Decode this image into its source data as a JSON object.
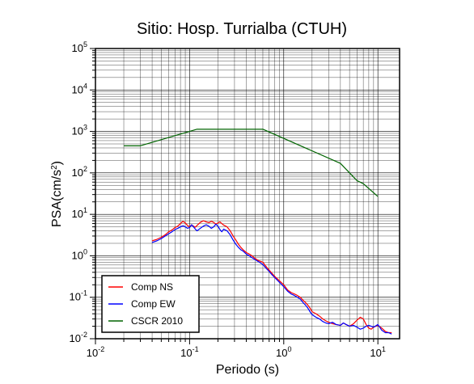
{
  "chart_data": {
    "type": "line",
    "title": "Sitio: Hosp. Turrialba (CTUH)",
    "xlabel": "Periodo (s)",
    "ylabel_base": "PSA(cm/s",
    "ylabel_exp": "2",
    "ylabel_close": ")",
    "x_scale": "log",
    "y_scale": "log",
    "xlim": [
      0.01,
      17
    ],
    "ylim": [
      0.01,
      100000
    ],
    "grid": true,
    "legend_position": "bottom-left",
    "x_ticks": [
      {
        "value": 0.01,
        "base": "10",
        "exp": "-2"
      },
      {
        "value": 0.1,
        "base": "10",
        "exp": "-1"
      },
      {
        "value": 1,
        "base": "10",
        "exp": "0"
      },
      {
        "value": 10,
        "base": "10",
        "exp": "1"
      }
    ],
    "y_ticks": [
      {
        "value": 0.01,
        "base": "10",
        "exp": "-2"
      },
      {
        "value": 0.1,
        "base": "10",
        "exp": "-1"
      },
      {
        "value": 1,
        "base": "10",
        "exp": "0"
      },
      {
        "value": 10,
        "base": "10",
        "exp": "1"
      },
      {
        "value": 100,
        "base": "10",
        "exp": "2"
      },
      {
        "value": 1000,
        "base": "10",
        "exp": "3"
      },
      {
        "value": 10000,
        "base": "10",
        "exp": "4"
      },
      {
        "value": 100000,
        "base": "10",
        "exp": "5"
      }
    ],
    "series": [
      {
        "name": "Comp NS",
        "color": "#ff0000",
        "points": [
          [
            0.04,
            2.3
          ],
          [
            0.045,
            2.5
          ],
          [
            0.05,
            2.8
          ],
          [
            0.055,
            3.2
          ],
          [
            0.06,
            3.8
          ],
          [
            0.065,
            4.2
          ],
          [
            0.07,
            4.8
          ],
          [
            0.075,
            5.2
          ],
          [
            0.08,
            6.0
          ],
          [
            0.085,
            6.8
          ],
          [
            0.09,
            6.2
          ],
          [
            0.095,
            5.4
          ],
          [
            0.1,
            5.0
          ],
          [
            0.105,
            5.6
          ],
          [
            0.11,
            5.2
          ],
          [
            0.115,
            4.9
          ],
          [
            0.12,
            5.4
          ],
          [
            0.13,
            6.4
          ],
          [
            0.14,
            7.0
          ],
          [
            0.15,
            6.6
          ],
          [
            0.16,
            6.3
          ],
          [
            0.17,
            6.8
          ],
          [
            0.18,
            6.4
          ],
          [
            0.19,
            5.8
          ],
          [
            0.2,
            6.2
          ],
          [
            0.21,
            6.6
          ],
          [
            0.22,
            6.0
          ],
          [
            0.23,
            5.5
          ],
          [
            0.25,
            5.0
          ],
          [
            0.27,
            4.0
          ],
          [
            0.29,
            3.0
          ],
          [
            0.31,
            2.4
          ],
          [
            0.33,
            1.9
          ],
          [
            0.35,
            1.6
          ],
          [
            0.37,
            1.4
          ],
          [
            0.4,
            1.2
          ],
          [
            0.43,
            1.1
          ],
          [
            0.46,
            1.0
          ],
          [
            0.5,
            0.85
          ],
          [
            0.55,
            0.75
          ],
          [
            0.6,
            0.7
          ],
          [
            0.65,
            0.55
          ],
          [
            0.7,
            0.45
          ],
          [
            0.75,
            0.38
          ],
          [
            0.8,
            0.32
          ],
          [
            0.9,
            0.25
          ],
          [
            1.0,
            0.2
          ],
          [
            1.1,
            0.15
          ],
          [
            1.2,
            0.13
          ],
          [
            1.3,
            0.12
          ],
          [
            1.4,
            0.11
          ],
          [
            1.5,
            0.1
          ],
          [
            1.6,
            0.085
          ],
          [
            1.7,
            0.075
          ],
          [
            1.8,
            0.065
          ],
          [
            1.9,
            0.055
          ],
          [
            2.0,
            0.045
          ],
          [
            2.2,
            0.04
          ],
          [
            2.4,
            0.035
          ],
          [
            2.6,
            0.03
          ],
          [
            2.8,
            0.027
          ],
          [
            3.0,
            0.025
          ],
          [
            3.3,
            0.023
          ],
          [
            3.6,
            0.022
          ],
          [
            4.0,
            0.021
          ],
          [
            4.3,
            0.024
          ],
          [
            4.6,
            0.022
          ],
          [
            5.0,
            0.02
          ],
          [
            5.5,
            0.023
          ],
          [
            6.0,
            0.028
          ],
          [
            6.5,
            0.033
          ],
          [
            7.0,
            0.03
          ],
          [
            7.5,
            0.022
          ],
          [
            8.0,
            0.018
          ],
          [
            8.5,
            0.017
          ],
          [
            9.0,
            0.019
          ],
          [
            10.0,
            0.021
          ],
          [
            11.0,
            0.018
          ],
          [
            12.0,
            0.015
          ],
          [
            13.0,
            0.014
          ],
          [
            14.0,
            0.014
          ]
        ]
      },
      {
        "name": "Comp EW",
        "color": "#0000ff",
        "points": [
          [
            0.04,
            2.1
          ],
          [
            0.045,
            2.3
          ],
          [
            0.05,
            2.6
          ],
          [
            0.055,
            3.0
          ],
          [
            0.06,
            3.4
          ],
          [
            0.065,
            3.8
          ],
          [
            0.07,
            4.3
          ],
          [
            0.075,
            4.6
          ],
          [
            0.08,
            5.0
          ],
          [
            0.085,
            5.3
          ],
          [
            0.09,
            5.0
          ],
          [
            0.095,
            4.6
          ],
          [
            0.1,
            4.8
          ],
          [
            0.105,
            5.6
          ],
          [
            0.11,
            5.0
          ],
          [
            0.115,
            4.4
          ],
          [
            0.12,
            4.0
          ],
          [
            0.13,
            4.6
          ],
          [
            0.14,
            5.2
          ],
          [
            0.15,
            5.6
          ],
          [
            0.16,
            5.2
          ],
          [
            0.17,
            4.6
          ],
          [
            0.18,
            5.0
          ],
          [
            0.19,
            5.8
          ],
          [
            0.2,
            5.2
          ],
          [
            0.21,
            4.3
          ],
          [
            0.22,
            3.8
          ],
          [
            0.23,
            4.4
          ],
          [
            0.25,
            4.0
          ],
          [
            0.27,
            3.2
          ],
          [
            0.29,
            2.4
          ],
          [
            0.31,
            1.9
          ],
          [
            0.33,
            1.6
          ],
          [
            0.35,
            1.4
          ],
          [
            0.37,
            1.3
          ],
          [
            0.4,
            1.1
          ],
          [
            0.43,
            1.0
          ],
          [
            0.46,
            0.9
          ],
          [
            0.5,
            0.8
          ],
          [
            0.55,
            0.7
          ],
          [
            0.6,
            0.62
          ],
          [
            0.65,
            0.5
          ],
          [
            0.7,
            0.42
          ],
          [
            0.75,
            0.35
          ],
          [
            0.8,
            0.3
          ],
          [
            0.9,
            0.23
          ],
          [
            1.0,
            0.18
          ],
          [
            1.1,
            0.14
          ],
          [
            1.2,
            0.12
          ],
          [
            1.3,
            0.11
          ],
          [
            1.4,
            0.1
          ],
          [
            1.5,
            0.09
          ],
          [
            1.6,
            0.075
          ],
          [
            1.7,
            0.065
          ],
          [
            1.8,
            0.055
          ],
          [
            1.9,
            0.045
          ],
          [
            2.0,
            0.038
          ],
          [
            2.2,
            0.033
          ],
          [
            2.4,
            0.03
          ],
          [
            2.6,
            0.026
          ],
          [
            2.8,
            0.024
          ],
          [
            3.0,
            0.023
          ],
          [
            3.3,
            0.025
          ],
          [
            3.6,
            0.022
          ],
          [
            4.0,
            0.021
          ],
          [
            4.3,
            0.024
          ],
          [
            4.6,
            0.022
          ],
          [
            5.0,
            0.02
          ],
          [
            5.5,
            0.021
          ],
          [
            6.0,
            0.019
          ],
          [
            6.5,
            0.017
          ],
          [
            7.0,
            0.018
          ],
          [
            7.5,
            0.02
          ],
          [
            8.0,
            0.021
          ],
          [
            8.5,
            0.02
          ],
          [
            9.0,
            0.019
          ],
          [
            10.0,
            0.022
          ],
          [
            11.0,
            0.016
          ],
          [
            12.0,
            0.014
          ],
          [
            13.0,
            0.014
          ],
          [
            14.0,
            0.013
          ]
        ]
      },
      {
        "name": "CSCR 2010",
        "color": "#006400",
        "points": [
          [
            0.02,
            450
          ],
          [
            0.03,
            450
          ],
          [
            0.12,
            1130
          ],
          [
            0.6,
            1130
          ],
          [
            4.0,
            170
          ],
          [
            6.0,
            65
          ],
          [
            7.0,
            55
          ],
          [
            8.0,
            42
          ],
          [
            10.0,
            27
          ]
        ]
      }
    ]
  }
}
